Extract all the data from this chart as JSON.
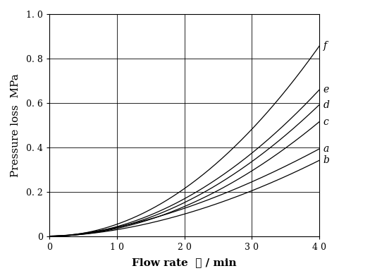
{
  "title": "",
  "xlabel": "Flow rate  ℓ / min",
  "ylabel": "Pressure loss  MPa",
  "xlim": [
    0,
    40
  ],
  "ylim": [
    0,
    1.0
  ],
  "xticks": [
    0,
    10,
    20,
    30,
    40
  ],
  "yticks": [
    0,
    0.2,
    0.4,
    0.6,
    0.8,
    1.0
  ],
  "xtick_labels": [
    "0",
    "1 0",
    "2 0",
    "3 0",
    "4 0"
  ],
  "ytick_labels": [
    "0",
    "0. 2",
    "0. 4",
    "0. 6",
    "0. 8",
    "1. 0"
  ],
  "curves": [
    {
      "label": "a",
      "coeff": 0.00052,
      "exp": 1.65
    },
    {
      "label": "b",
      "coeff": 0.00042,
      "exp": 1.75
    },
    {
      "label": "c",
      "coeff": 0.00026,
      "exp": 2.0
    },
    {
      "label": "d",
      "coeff": 0.00031,
      "exp": 2.0
    },
    {
      "label": "e",
      "coeff": 0.00039,
      "exp": 2.0
    },
    {
      "label": "f",
      "coeff": 0.00054,
      "exp": 2.0
    }
  ],
  "line_color": "#000000",
  "background_color": "#ffffff",
  "grid_color": "#555555",
  "label_fontsize": 10,
  "tick_fontsize": 9,
  "axis_label_fontsize": 11
}
